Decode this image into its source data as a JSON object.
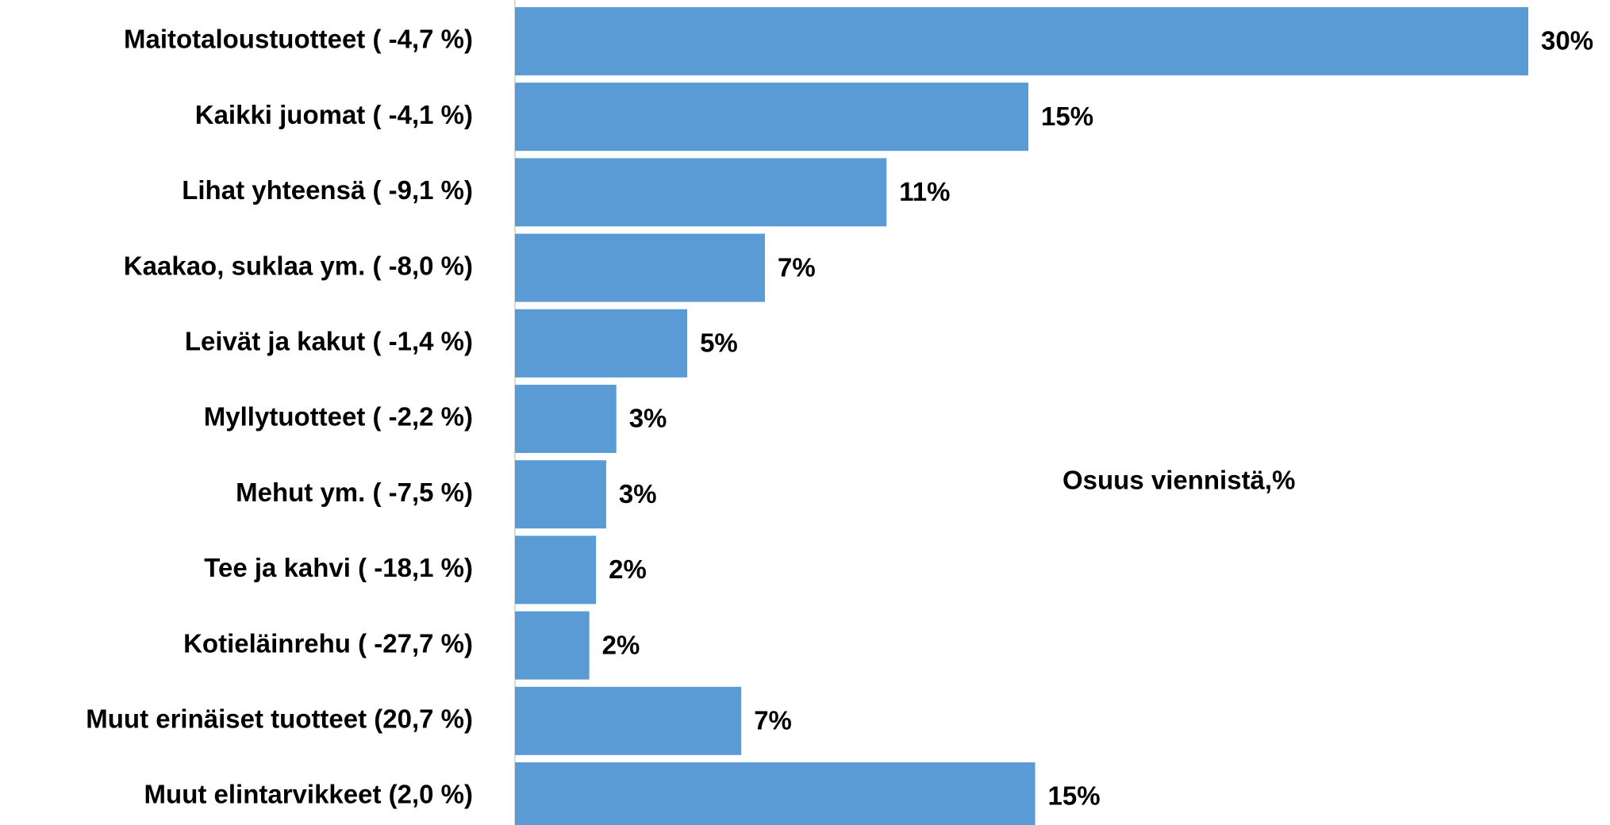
{
  "chart_data": {
    "type": "bar",
    "orientation": "horizontal",
    "categories": [
      "Maitotaloustuotteet ( -4,7 %)",
      "Kaikki juomat ( -4,1 %)",
      "Lihat yhteensä ( -9,1 %)",
      "Kaakao, suklaa ym. ( -8,0 %)",
      "Leivät ja kakut ( -1,4 %)",
      "Myllytuotteet ( -2,2 %)",
      "Mehut ym. ( -7,5 %)",
      "Tee ja kahvi ( -18,1 %)",
      "Kotieläinrehu ( -27,7 %)",
      "Muut erinäiset tuotteet (20,7 %)",
      "Muut elintarvikkeet (2,0 %)"
    ],
    "values": [
      30.0,
      15.2,
      11.0,
      7.4,
      5.1,
      3.0,
      2.7,
      2.4,
      2.2,
      6.7,
      15.4
    ],
    "value_labels": [
      "30%",
      "15%",
      "11%",
      "7%",
      "5%",
      "3%",
      "3%",
      "2%",
      "2%",
      "7%",
      "15%"
    ],
    "color": "#5b9bd5",
    "xlim": [
      0,
      31
    ],
    "annotation": "Osuus viennistä,%"
  }
}
